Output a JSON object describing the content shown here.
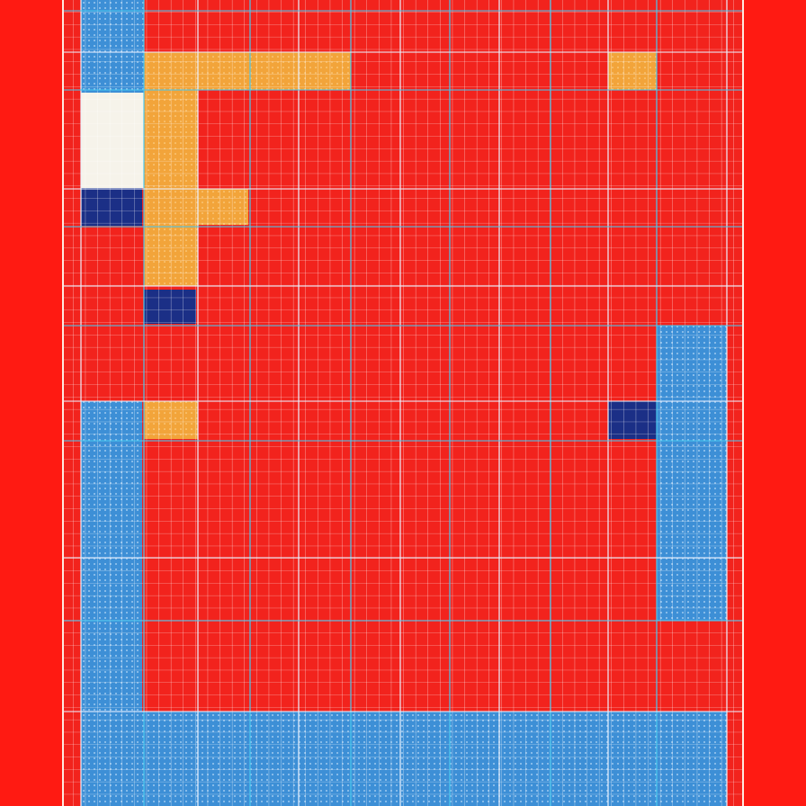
{
  "palette": {
    "border_red": "#ff1a12",
    "field_red": "#f2231d",
    "sky_blue": "#3d8fd6",
    "navy": "#1b2f86",
    "cream": "#f6f3ea",
    "ochre": "#f2a43a",
    "grid_white": "#e9f1ff",
    "grid_cyan": "#49c8ef"
  },
  "tile_semantics": [
    "sky-blue-block",
    "cream-block",
    "navy-block",
    "ochre-block"
  ]
}
